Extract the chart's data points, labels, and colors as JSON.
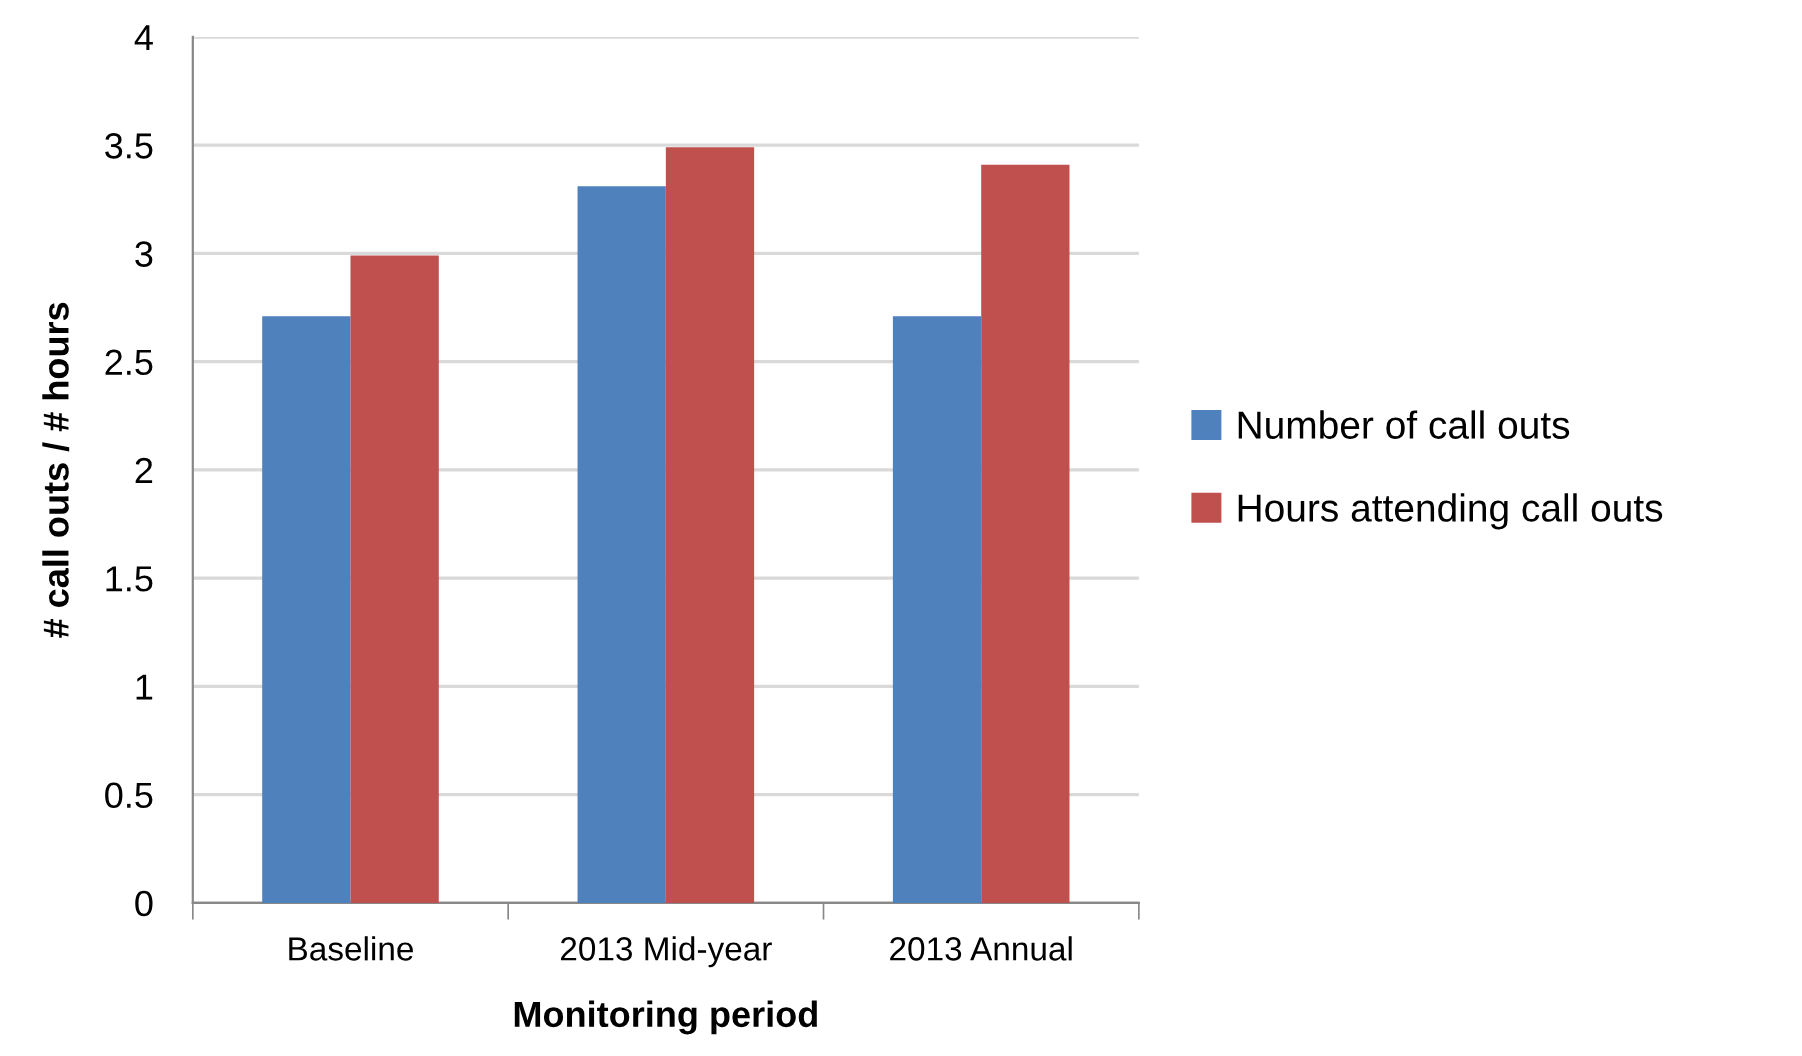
{
  "chart_data": {
    "type": "bar",
    "xlabel": "Monitoring period",
    "ylabel": "# call outs / # hours",
    "categories": [
      "Baseline",
      "2013 Mid-year",
      "2013 Annual"
    ],
    "series": [
      {
        "name": "Number of call outs",
        "color": "#4f81bd",
        "values": [
          2.71,
          3.31,
          2.71
        ]
      },
      {
        "name": "Hours attending call outs",
        "color": "#c0504d",
        "values": [
          2.99,
          3.49,
          3.41
        ]
      }
    ],
    "ylim": [
      0,
      4
    ],
    "yticks": [
      0,
      0.5,
      1,
      1.5,
      2,
      2.5,
      3,
      3.5,
      4
    ],
    "grid": "y",
    "legend": "right"
  }
}
